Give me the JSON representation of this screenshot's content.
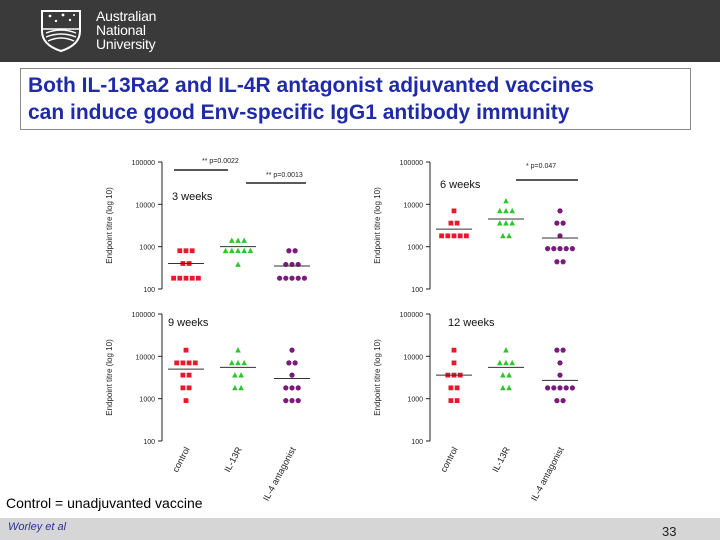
{
  "header": {
    "logo_icon": "anu-crest-icon",
    "university_name_lines": [
      "Australian",
      "National",
      "University"
    ],
    "background": "#3a3a3a"
  },
  "slide": {
    "title_line1": "Both IL-13Ra2 and IL-4R antagonist adjuvanted vaccines",
    "title_line2": "can induce good Env-specific IgG1 antibody immunity",
    "title_color": "#1f2aa8",
    "footnote": "Control = unadjuvanted vaccine",
    "author": "Worley et al",
    "page_number": "33"
  },
  "chart_data": [
    {
      "type": "scatter",
      "panel_label": "3 weeks",
      "ylabel": "Endpoint titre (log 10)",
      "y_scale": "log",
      "ylim": [
        100,
        100000
      ],
      "y_ticks": [
        "100",
        "1000",
        "10000",
        "100000"
      ],
      "categories": [
        "control",
        "IL-13R",
        "IL-4 antagonist"
      ],
      "annotations": [
        {
          "text": "** p=0.0022",
          "from": "control",
          "to": "IL-13R"
        },
        {
          "text": "** p=0.0013",
          "from": "IL-13R",
          "to": "IL-4 antagonist"
        }
      ],
      "series": [
        {
          "category": "control",
          "marker": "square",
          "color": "#e8192c",
          "median": 400,
          "values": [
            800,
            800,
            800,
            400,
            400,
            180,
            180,
            180,
            180,
            180
          ]
        },
        {
          "category": "IL-13R",
          "marker": "triangle",
          "color": "#2ec62e",
          "median": 1000,
          "values": [
            1400,
            1400,
            1400,
            800,
            800,
            800,
            800,
            800,
            380
          ]
        },
        {
          "category": "IL-4 antagonist",
          "marker": "circle",
          "color": "#7a1a7a",
          "median": 350,
          "values": [
            800,
            800,
            380,
            380,
            380,
            180,
            180,
            180,
            180,
            180
          ]
        }
      ]
    },
    {
      "type": "scatter",
      "panel_label": "6 weeks",
      "ylabel": "Endpoint titre (log 10)",
      "y_scale": "log",
      "ylim": [
        100,
        100000
      ],
      "y_ticks": [
        "100",
        "1000",
        "10000",
        "100000"
      ],
      "categories": [
        "control",
        "IL-13R",
        "IL-4 antagonist"
      ],
      "annotations": [
        {
          "text": "* p=0.047",
          "from": "IL-13R",
          "to": "IL-4 antagonist"
        }
      ],
      "series": [
        {
          "category": "control",
          "marker": "square",
          "color": "#e8192c",
          "median": 2600,
          "values": [
            7000,
            3600,
            3600,
            1800,
            1800,
            1800,
            1800,
            1800
          ]
        },
        {
          "category": "IL-13R",
          "marker": "triangle",
          "color": "#2ec62e",
          "median": 4500,
          "values": [
            12000,
            7000,
            7000,
            7000,
            3600,
            3600,
            3600,
            1800,
            1800
          ]
        },
        {
          "category": "IL-4 antagonist",
          "marker": "circle",
          "color": "#7a1a7a",
          "median": 1600,
          "values": [
            7000,
            3600,
            3600,
            1800,
            900,
            900,
            900,
            900,
            900,
            440,
            440
          ]
        }
      ]
    },
    {
      "type": "scatter",
      "panel_label": "9 weeks",
      "ylabel": "Endpoint titre (log 10)",
      "y_scale": "log",
      "ylim": [
        100,
        100000
      ],
      "y_ticks": [
        "100",
        "1000",
        "10000",
        "100000"
      ],
      "categories": [
        "control",
        "IL-13R",
        "IL-4 antagonist"
      ],
      "annotations": [],
      "series": [
        {
          "category": "control",
          "marker": "square",
          "color": "#e8192c",
          "median": 5000,
          "values": [
            14000,
            7000,
            7000,
            7000,
            7000,
            3600,
            3600,
            1800,
            1800,
            900
          ]
        },
        {
          "category": "IL-13R",
          "marker": "triangle",
          "color": "#2ec62e",
          "median": 5500,
          "values": [
            14000,
            7000,
            7000,
            7000,
            3600,
            3600,
            1800,
            1800
          ]
        },
        {
          "category": "IL-4 antagonist",
          "marker": "circle",
          "color": "#7a1a7a",
          "median": 3000,
          "values": [
            14000,
            7000,
            7000,
            3600,
            1800,
            1800,
            1800,
            900,
            900,
            900
          ]
        }
      ]
    },
    {
      "type": "scatter",
      "panel_label": "12 weeks",
      "ylabel": "Endpoint titre (log 10)",
      "y_scale": "log",
      "ylim": [
        100,
        100000
      ],
      "y_ticks": [
        "100",
        "1000",
        "10000",
        "100000"
      ],
      "categories": [
        "control",
        "IL-13R",
        "IL-4 antagonist"
      ],
      "annotations": [],
      "series": [
        {
          "category": "control",
          "marker": "square",
          "color": "#e8192c",
          "median": 3600,
          "values": [
            14000,
            7000,
            3600,
            3600,
            3600,
            1800,
            1800,
            900,
            900
          ]
        },
        {
          "category": "IL-13R",
          "marker": "triangle",
          "color": "#2ec62e",
          "median": 5500,
          "values": [
            14000,
            7000,
            7000,
            7000,
            3600,
            3600,
            1800,
            1800
          ]
        },
        {
          "category": "IL-4 antagonist",
          "marker": "circle",
          "color": "#7a1a7a",
          "median": 2700,
          "values": [
            14000,
            14000,
            7000,
            3600,
            1800,
            1800,
            1800,
            1800,
            1800,
            900,
            900
          ]
        }
      ]
    }
  ]
}
